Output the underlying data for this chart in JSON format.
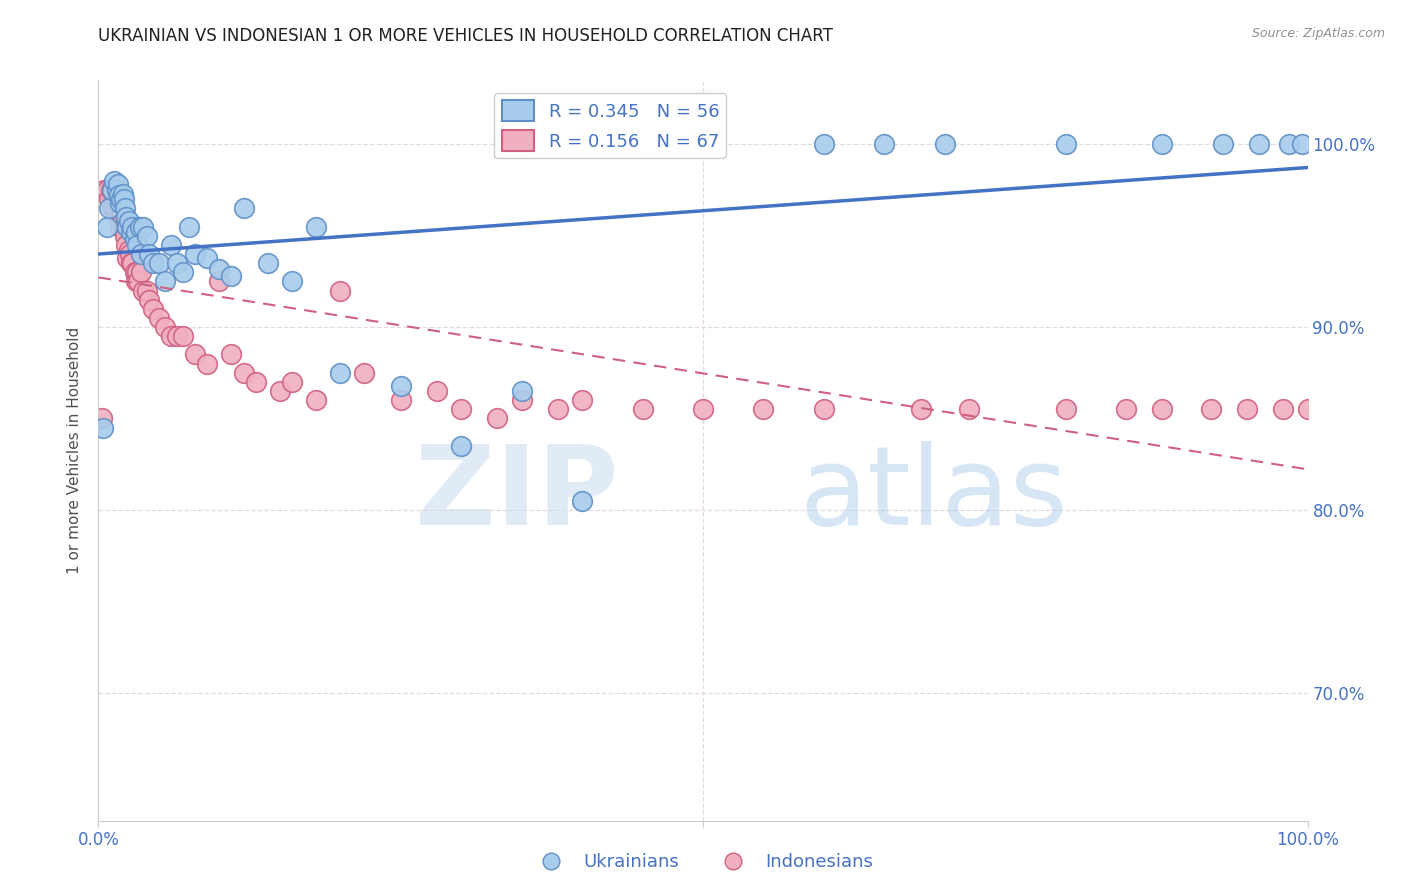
{
  "title": "UKRAINIAN VS INDONESIAN 1 OR MORE VEHICLES IN HOUSEHOLD CORRELATION CHART",
  "source": "Source: ZipAtlas.com",
  "ylabel": "1 or more Vehicles in Household",
  "watermark_zip": "ZIP",
  "watermark_atlas": "atlas",
  "legend_blue_r": "R = 0.345",
  "legend_blue_n": "N = 56",
  "legend_pink_r": "R = 0.156",
  "legend_pink_n": "N = 67",
  "ytick_labels": [
    "70.0%",
    "80.0%",
    "90.0%",
    "100.0%"
  ],
  "ytick_values": [
    70.0,
    80.0,
    90.0,
    100.0
  ],
  "xlim": [
    0.0,
    100.0
  ],
  "ylim": [
    63.0,
    103.5
  ],
  "blue_scatter_color": "#A8CCEC",
  "blue_edge_color": "#6090C8",
  "pink_scatter_color": "#F0B0C0",
  "pink_edge_color": "#D06080",
  "blue_line_color": "#4472C4",
  "pink_line_color": "#D06080",
  "grid_color": "#E8D8E0",
  "axis_label_color": "#4472C4",
  "title_color": "#202020",
  "blue_x": [
    0.4,
    0.7,
    0.9,
    1.1,
    1.3,
    1.5,
    1.6,
    1.7,
    1.8,
    1.9,
    2.0,
    2.1,
    2.2,
    2.3,
    2.4,
    2.5,
    2.7,
    2.8,
    3.0,
    3.1,
    3.2,
    3.4,
    3.5,
    3.7,
    4.0,
    4.2,
    4.5,
    5.0,
    5.5,
    6.0,
    6.5,
    7.0,
    7.5,
    8.0,
    9.0,
    10.0,
    11.0,
    12.0,
    14.0,
    16.0,
    18.0,
    20.0,
    25.0,
    30.0,
    35.0,
    40.0,
    50.0,
    60.0,
    65.0,
    70.0,
    80.0,
    88.0,
    93.0,
    96.0,
    98.5,
    99.5
  ],
  "blue_y": [
    84.5,
    95.5,
    96.5,
    97.5,
    98.0,
    97.5,
    97.8,
    97.2,
    96.8,
    97.0,
    97.3,
    97.0,
    96.5,
    96.0,
    95.5,
    95.8,
    95.2,
    95.5,
    94.8,
    95.2,
    94.5,
    95.5,
    94.0,
    95.5,
    95.0,
    94.0,
    93.5,
    93.5,
    92.5,
    94.5,
    93.5,
    93.0,
    95.5,
    94.0,
    93.8,
    93.2,
    92.8,
    96.5,
    93.5,
    92.5,
    95.5,
    87.5,
    86.8,
    83.5,
    86.5,
    80.5,
    100.0,
    100.0,
    100.0,
    100.0,
    100.0,
    100.0,
    100.0,
    100.0,
    100.0,
    100.0
  ],
  "pink_x": [
    0.3,
    0.5,
    0.7,
    0.9,
    1.0,
    1.2,
    1.3,
    1.4,
    1.5,
    1.6,
    1.7,
    1.8,
    1.9,
    2.0,
    2.1,
    2.2,
    2.3,
    2.4,
    2.5,
    2.6,
    2.7,
    2.8,
    3.0,
    3.1,
    3.2,
    3.3,
    3.5,
    3.7,
    4.0,
    4.2,
    4.5,
    5.0,
    5.5,
    6.0,
    6.5,
    7.0,
    8.0,
    9.0,
    10.0,
    11.0,
    12.0,
    13.0,
    15.0,
    16.0,
    18.0,
    20.0,
    22.0,
    25.0,
    28.0,
    30.0,
    33.0,
    35.0,
    38.0,
    40.0,
    45.0,
    50.0,
    55.0,
    60.0,
    68.0,
    72.0,
    80.0,
    85.0,
    88.0,
    92.0,
    95.0,
    98.0,
    100.0
  ],
  "pink_y": [
    85.0,
    97.5,
    97.5,
    97.0,
    97.5,
    96.5,
    96.8,
    96.5,
    97.0,
    96.5,
    96.0,
    95.5,
    96.0,
    95.8,
    95.5,
    95.0,
    94.5,
    93.8,
    94.2,
    94.0,
    93.5,
    93.5,
    93.0,
    92.5,
    93.0,
    92.5,
    93.0,
    92.0,
    92.0,
    91.5,
    91.0,
    90.5,
    90.0,
    89.5,
    89.5,
    89.5,
    88.5,
    88.0,
    92.5,
    88.5,
    87.5,
    87.0,
    86.5,
    87.0,
    86.0,
    92.0,
    87.5,
    86.0,
    86.5,
    85.5,
    85.0,
    86.0,
    85.5,
    86.0,
    85.5,
    85.5,
    85.5,
    85.5,
    85.5,
    85.5,
    85.5,
    85.5,
    85.5,
    85.5,
    85.5,
    85.5,
    85.5
  ]
}
